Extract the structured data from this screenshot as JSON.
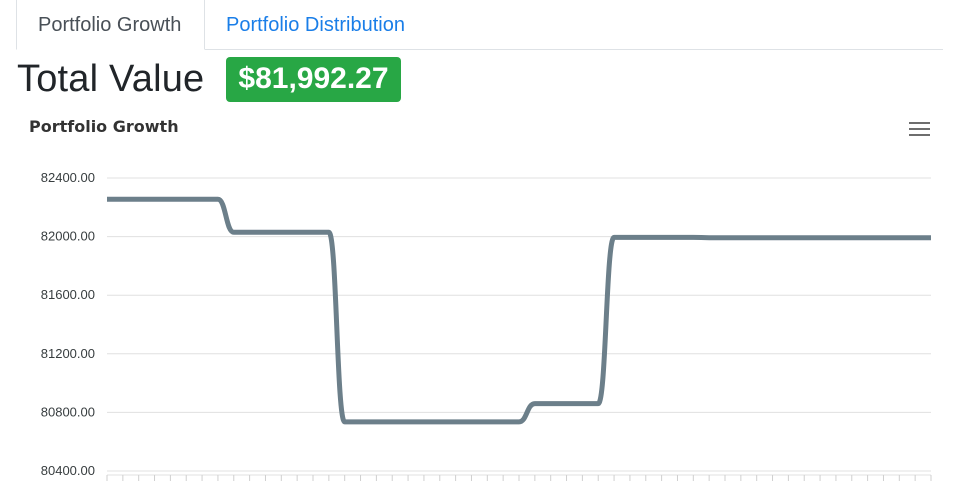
{
  "tabs": [
    {
      "label": "Portfolio Growth",
      "active": true
    },
    {
      "label": "Portfolio Distribution",
      "active": false
    }
  ],
  "summary": {
    "label": "Total Value",
    "value": "$81,992.27",
    "badge_color": "#28a745"
  },
  "chart_menu_icon": "hamburger-menu-icon",
  "chart_data": {
    "type": "line",
    "title": "Portfolio Growth",
    "xlabel": "",
    "ylabel": "",
    "ylim": [
      80400,
      82400
    ],
    "yticks": [
      "82400.00",
      "82000.00",
      "81600.00",
      "81200.00",
      "80800.00",
      "80400.00"
    ],
    "grid": true,
    "line_color": "#6c7f8a",
    "series": [
      {
        "values": [
          82255,
          82255,
          82255,
          82255,
          82255,
          82255,
          82255,
          82255,
          82030,
          82030,
          82030,
          82030,
          82030,
          82030,
          82030,
          80735,
          80735,
          80735,
          80735,
          80735,
          80735,
          80735,
          80735,
          80735,
          80735,
          80735,
          80735,
          80860,
          80860,
          80860,
          80860,
          80860,
          81995,
          81995,
          81995,
          81995,
          81995,
          81995,
          81992,
          81992,
          81992,
          81992,
          81992,
          81992,
          81992,
          81992,
          81992,
          81992,
          81992,
          81992,
          81992,
          81992,
          81992
        ]
      }
    ]
  }
}
